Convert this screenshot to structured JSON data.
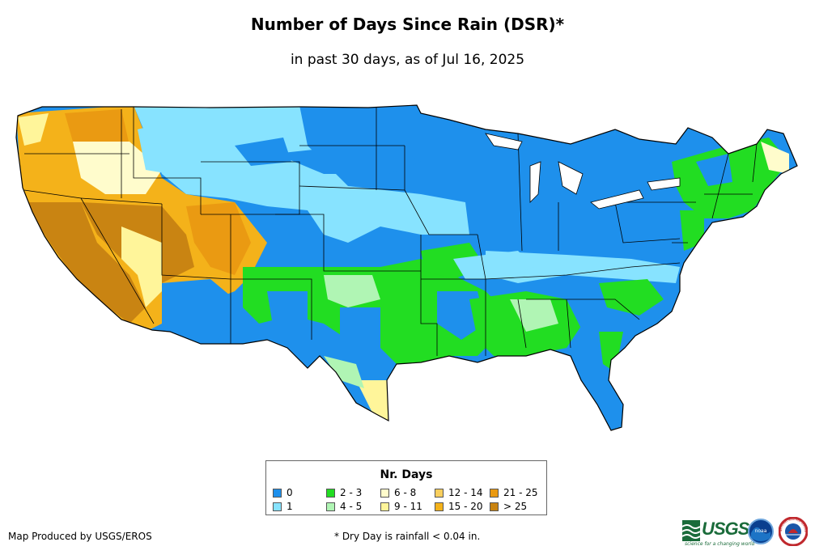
{
  "header": {
    "title": "Number of Days Since Rain (DSR)*",
    "subtitle": "in past 30 days, as of Jul 16, 2025"
  },
  "legend": {
    "title": "Nr. Days",
    "items": [
      {
        "label": "0",
        "color": "#1e90ec"
      },
      {
        "label": "1",
        "color": "#87e3ff"
      },
      {
        "label": "2 - 3",
        "color": "#22dd22"
      },
      {
        "label": "4 - 5",
        "color": "#b0f5b4"
      },
      {
        "label": "6 - 8",
        "color": "#fffccc"
      },
      {
        "label": "9 - 11",
        "color": "#fff59a"
      },
      {
        "label": "12 - 14",
        "color": "#f9cf5e"
      },
      {
        "label": "15 - 20",
        "color": "#f4b21a"
      },
      {
        "label": "21 - 25",
        "color": "#ea9a12"
      },
      {
        "label": "> 25",
        "color": "#c98412"
      }
    ]
  },
  "footer": {
    "credit": "Map Produced by USGS/EROS",
    "footnote": "* Dry Day is rainfall < 0.04 in.",
    "usgs_logo": "USGS",
    "usgs_tagline": "science for a changing world",
    "noaa_logo": "noaa",
    "nws_logo": "NATIONAL WEATHER SERVICE"
  },
  "colors": {
    "background": "#ffffff",
    "border": "#000000"
  }
}
